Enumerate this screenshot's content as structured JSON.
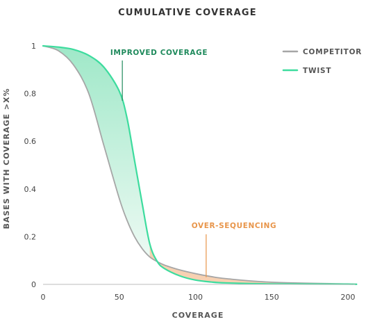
{
  "chart_data": {
    "type": "line",
    "title": "CUMULATIVE COVERAGE",
    "xlabel": "COVERAGE",
    "ylabel": "BASES WITH COVERAGE >X%",
    "xlim": [
      0,
      205
    ],
    "ylim": [
      0,
      1
    ],
    "xticks": [
      "0",
      "50",
      "100",
      "150",
      "200"
    ],
    "yticks": [
      "0",
      "0.2",
      "0.4",
      "0.6",
      "0.8",
      "1"
    ],
    "grid": false,
    "legend_position": "top-right",
    "x": [
      0,
      10,
      20,
      30,
      40,
      50,
      55,
      60,
      65,
      70,
      75,
      80,
      90,
      100,
      110,
      120,
      150,
      200,
      205
    ],
    "series": [
      {
        "name": "COMPETITOR",
        "color": "#a6a6a6",
        "values": [
          1.0,
          0.98,
          0.92,
          0.8,
          0.58,
          0.36,
          0.27,
          0.2,
          0.15,
          0.115,
          0.095,
          0.08,
          0.06,
          0.045,
          0.033,
          0.024,
          0.009,
          0.002,
          0.001
        ]
      },
      {
        "name": "TWIST",
        "color": "#3ddc9e",
        "values": [
          1.0,
          0.995,
          0.985,
          0.96,
          0.91,
          0.81,
          0.7,
          0.52,
          0.34,
          0.17,
          0.095,
          0.065,
          0.035,
          0.018,
          0.01,
          0.006,
          0.002,
          0.001,
          0.0
        ]
      }
    ],
    "annotations": [
      {
        "text": "IMPROVED COVERAGE",
        "color": "#1f8a5c",
        "x": 52,
        "y": 0.77
      },
      {
        "text": "OVER-SEQUENCING",
        "color": "#e8954a",
        "x": 107,
        "y": 0.03
      }
    ],
    "fills": {
      "improved_top": "#9fe8c8",
      "improved_bottom": "#eefaf4",
      "over_sequencing": "#f6c9a4"
    }
  }
}
